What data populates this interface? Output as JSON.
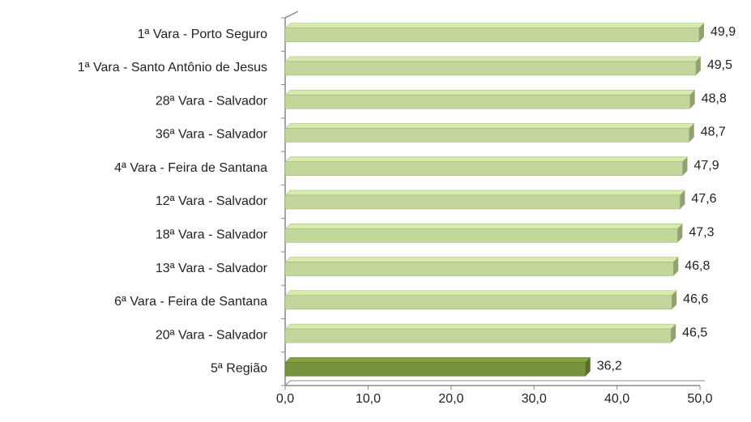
{
  "chart_data": {
    "type": "bar",
    "orientation": "horizontal",
    "categories": [
      "1ª Vara -  Porto Seguro",
      "1ª Vara -  Santo Antônio de Jesus",
      "28ª Vara -  Salvador",
      "36ª Vara -  Salvador",
      "4ª Vara -  Feira de Santana",
      "12ª Vara -  Salvador",
      "18ª Vara -  Salvador",
      "13ª Vara -  Salvador",
      "6ª Vara -  Feira de Santana",
      "20ª Vara -  Salvador",
      "5ª Região"
    ],
    "values": [
      49.9,
      49.5,
      48.8,
      48.7,
      47.9,
      47.6,
      47.3,
      46.8,
      46.6,
      46.5,
      36.2
    ],
    "value_labels": [
      "49,9",
      "49,5",
      "48,8",
      "48,7",
      "47,9",
      "47,6",
      "47,3",
      "46,8",
      "46,6",
      "46,5",
      "36,2"
    ],
    "colors": [
      "#c3d69b",
      "#c3d69b",
      "#c3d69b",
      "#c3d69b",
      "#c3d69b",
      "#c3d69b",
      "#c3d69b",
      "#c3d69b",
      "#c3d69b",
      "#c3d69b",
      "#77933c"
    ],
    "xlim": [
      0,
      50
    ],
    "xticks": [
      {
        "value": 0,
        "label": "0,0"
      },
      {
        "value": 10,
        "label": "10,0"
      },
      {
        "value": 20,
        "label": "20,0"
      },
      {
        "value": 30,
        "label": "30,0"
      },
      {
        "value": 40,
        "label": "40,0"
      },
      {
        "value": 50,
        "label": "50,0"
      }
    ],
    "grid": false
  }
}
